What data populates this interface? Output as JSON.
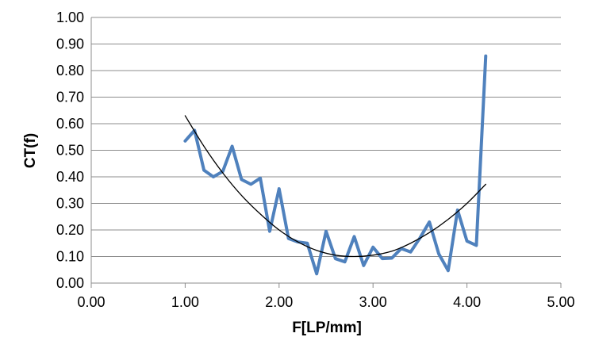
{
  "chart_data": {
    "type": "scatter",
    "title": "",
    "xlabel": "F[LP/mm]",
    "ylabel": "CT(f)",
    "xlim": [
      0,
      5
    ],
    "ylim": [
      0,
      1
    ],
    "xticks": [
      "0.00",
      "1.00",
      "2.00",
      "3.00",
      "4.00",
      "5.00"
    ],
    "yticks": [
      "0.00",
      "0.10",
      "0.20",
      "0.30",
      "0.40",
      "0.50",
      "0.60",
      "0.70",
      "0.80",
      "0.90",
      "1.00"
    ],
    "grid": true,
    "legend": false,
    "series": [
      {
        "style": "line",
        "color": "#4F81BD",
        "points": [
          [
            1.0,
            0.535
          ],
          [
            1.1,
            0.575
          ],
          [
            1.2,
            0.425
          ],
          [
            1.3,
            0.4
          ],
          [
            1.4,
            0.42
          ],
          [
            1.5,
            0.515
          ],
          [
            1.6,
            0.39
          ],
          [
            1.7,
            0.372
          ],
          [
            1.8,
            0.395
          ],
          [
            1.9,
            0.195
          ],
          [
            2.0,
            0.355
          ],
          [
            2.1,
            0.168
          ],
          [
            2.2,
            0.155
          ],
          [
            2.3,
            0.15
          ],
          [
            2.4,
            0.035
          ],
          [
            2.5,
            0.195
          ],
          [
            2.6,
            0.092
          ],
          [
            2.7,
            0.08
          ],
          [
            2.8,
            0.175
          ],
          [
            2.9,
            0.066
          ],
          [
            3.0,
            0.135
          ],
          [
            3.1,
            0.092
          ],
          [
            3.2,
            0.094
          ],
          [
            3.3,
            0.13
          ],
          [
            3.4,
            0.117
          ],
          [
            3.5,
            0.17
          ],
          [
            3.6,
            0.23
          ],
          [
            3.7,
            0.11
          ],
          [
            3.8,
            0.047
          ],
          [
            3.9,
            0.275
          ],
          [
            4.0,
            0.158
          ],
          [
            4.1,
            0.142
          ],
          [
            4.2,
            0.855
          ]
        ]
      },
      {
        "style": "trendline",
        "color": "#000000",
        "points": [
          [
            1.0,
            0.63
          ],
          [
            1.2,
            0.515
          ],
          [
            1.4,
            0.415
          ],
          [
            1.6,
            0.33
          ],
          [
            1.8,
            0.26
          ],
          [
            2.0,
            0.2
          ],
          [
            2.2,
            0.155
          ],
          [
            2.4,
            0.123
          ],
          [
            2.6,
            0.105
          ],
          [
            2.8,
            0.1
          ],
          [
            3.0,
            0.105
          ],
          [
            3.2,
            0.12
          ],
          [
            3.4,
            0.15
          ],
          [
            3.6,
            0.19
          ],
          [
            3.8,
            0.24
          ],
          [
            4.0,
            0.3
          ],
          [
            4.2,
            0.372
          ]
        ]
      }
    ]
  }
}
